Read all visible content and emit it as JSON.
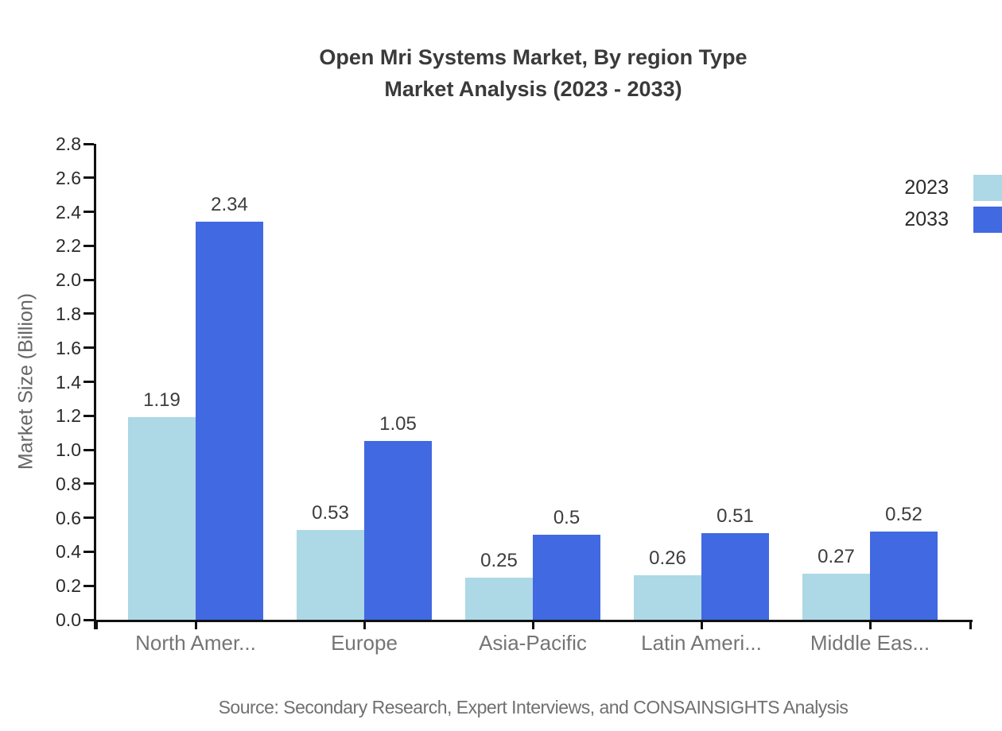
{
  "chart_data": {
    "type": "bar",
    "title_line1": "Open Mri Systems Market, By region Type",
    "title_line2": "Market Analysis (2023 - 2033)",
    "ylabel": "Market Size (Billion)",
    "xlabel": "",
    "ylim": [
      0,
      2.8
    ],
    "ytick_step": 0.2,
    "grid": false,
    "legend_position": "top-right",
    "categories": [
      "North Amer...",
      "Europe",
      "Asia-Pacific",
      "Latin Ameri...",
      "Middle Eas..."
    ],
    "series": [
      {
        "name": "2023",
        "color": "#ADD8E6",
        "values": [
          1.19,
          0.53,
          0.25,
          0.26,
          0.27
        ]
      },
      {
        "name": "2033",
        "color": "#4169E1",
        "values": [
          2.34,
          1.05,
          0.5,
          0.51,
          0.52
        ]
      }
    ]
  },
  "footer": {
    "source": "Source: Secondary Research, Expert Interviews, and CONSAINSIGHTS Analysis"
  },
  "colors": {
    "axis": "#111111",
    "title_text": "#3a3a3a",
    "ytick_label": "#2b2b2b",
    "category_label": "#757575",
    "value_label": "#3d3d3d",
    "source_text": "#707070",
    "series_2023": "#ADD8E6",
    "series_2033": "#4169E1"
  }
}
